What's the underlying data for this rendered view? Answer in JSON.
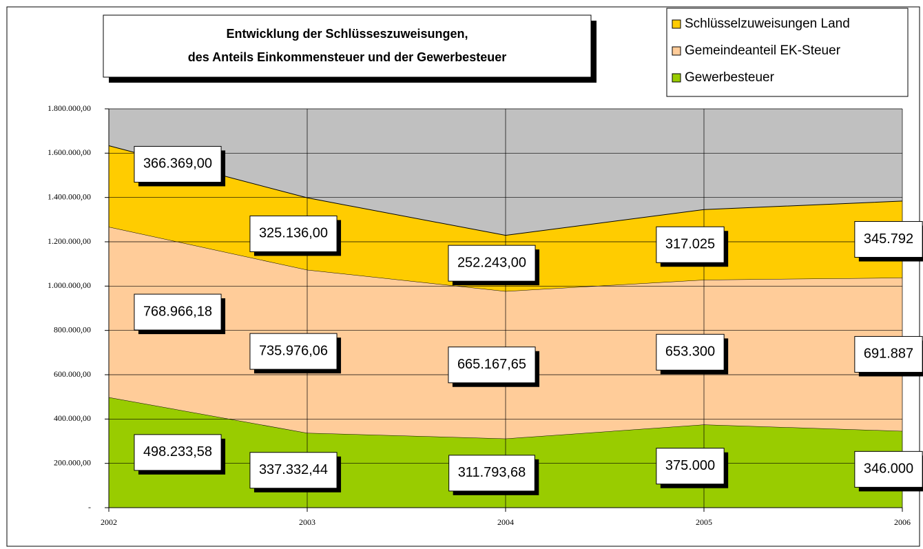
{
  "chart_data": {
    "type": "stacked-area",
    "title": [
      "Entwicklung der Schlüsseszuweisungen,",
      "des Anteils Einkommensteuer und der Gewerbesteuer"
    ],
    "categories": [
      "2002",
      "2003",
      "2004",
      "2005",
      "2006"
    ],
    "series": [
      {
        "name": "Gewerbesteuer",
        "color": "#99cc00",
        "values": [
          498233.58,
          337332.44,
          311793.68,
          375000,
          346000
        ],
        "value_labels": [
          "498.233,58",
          "337.332,44",
          "311.793,68",
          "375.000",
          "346.000"
        ]
      },
      {
        "name": "Gemeindeanteil EK-Steuer",
        "color": "#ffcc99",
        "values": [
          768966.18,
          735976.06,
          665167.65,
          653300,
          691887
        ],
        "value_labels": [
          "768.966,18",
          "735.976,06",
          "665.167,65",
          "653.300",
          "691.887"
        ]
      },
      {
        "name": "Schlüsselzuweisungen Land",
        "color": "#ffcc00",
        "values": [
          366369,
          325136,
          252243,
          317025,
          345792
        ],
        "value_labels": [
          "366.369,00",
          "325.136,00",
          "252.243,00",
          "317.025",
          "345.792"
        ]
      }
    ],
    "ylim": [
      0,
      1800000
    ],
    "yticks": [
      {
        "value": 0,
        "label": "-"
      },
      {
        "value": 200000,
        "label": "200.000,00"
      },
      {
        "value": 400000,
        "label": "400.000,00"
      },
      {
        "value": 600000,
        "label": "600.000,00"
      },
      {
        "value": 800000,
        "label": "800.000,00"
      },
      {
        "value": 1000000,
        "label": "1.000.000,00"
      },
      {
        "value": 1200000,
        "label": "1.200.000,00"
      },
      {
        "value": 1400000,
        "label": "1.400.000,00"
      },
      {
        "value": 1600000,
        "label": "1.600.000,00"
      },
      {
        "value": 1800000,
        "label": "1.800.000,00"
      }
    ],
    "grid": true,
    "plot_background": "#c0c0c0"
  }
}
